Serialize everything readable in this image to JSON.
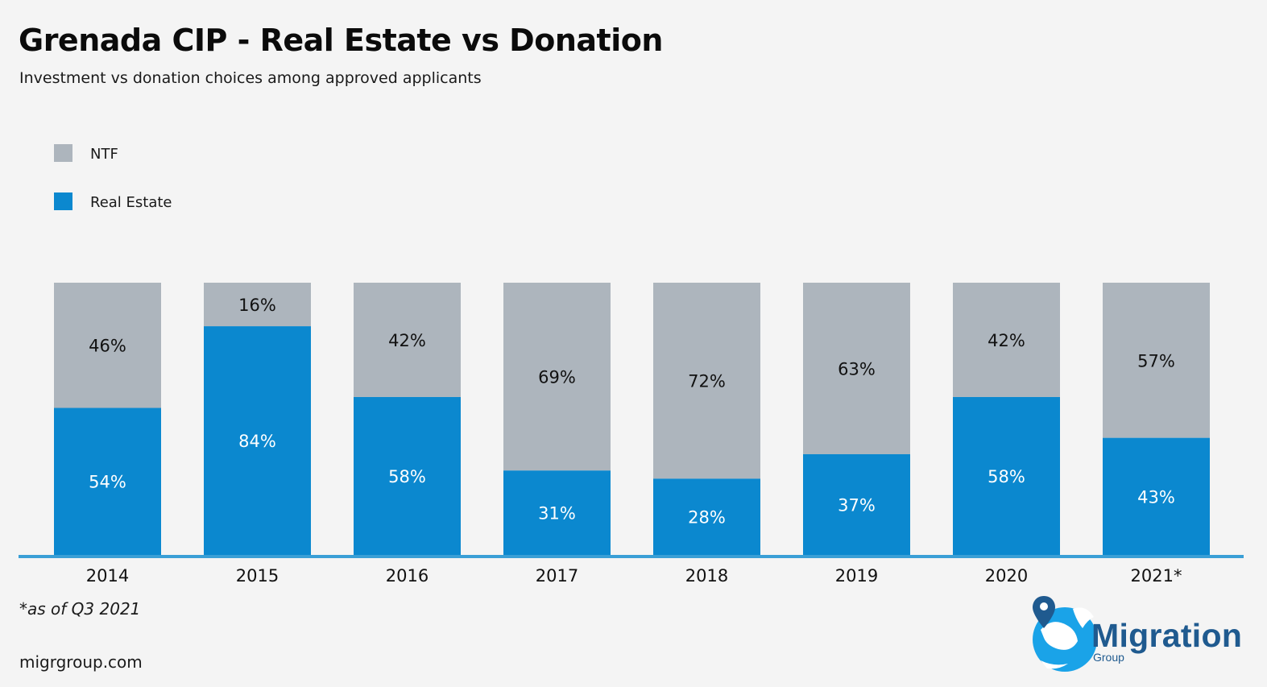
{
  "title": "Grenada CIP - Real Estate vs Donation",
  "subtitle": "Investment vs donation choices among approved applicants",
  "footnote": "*as of Q3 2021",
  "website": "migrgroup.com",
  "logo": {
    "name": "Migration",
    "sub": "Group"
  },
  "colors": {
    "ntf": "#adb5bd",
    "real_estate": "#0b88cf",
    "axis": "#3a9fd6",
    "background": "#f4f4f4"
  },
  "chart_data": {
    "type": "bar",
    "stacked": true,
    "percent_stacked": true,
    "categories": [
      "2014",
      "2015",
      "2016",
      "2017",
      "2018",
      "2019",
      "2020",
      "2021*"
    ],
    "series": [
      {
        "name": "Real Estate",
        "values": [
          54,
          84,
          58,
          31,
          28,
          37,
          58,
          43
        ],
        "labels": [
          "54%",
          "84%",
          "58%",
          "31%",
          "28%",
          "37%",
          "58%",
          "43%"
        ]
      },
      {
        "name": "NTF",
        "values": [
          46,
          16,
          42,
          69,
          72,
          63,
          42,
          57
        ],
        "labels": [
          "46%",
          "16%",
          "42%",
          "69%",
          "72%",
          "63%",
          "42%",
          "57%"
        ]
      }
    ],
    "legend": [
      "NTF",
      "Real Estate"
    ],
    "legend_position": "top-left",
    "ylim": [
      0,
      100
    ],
    "grid": false
  }
}
